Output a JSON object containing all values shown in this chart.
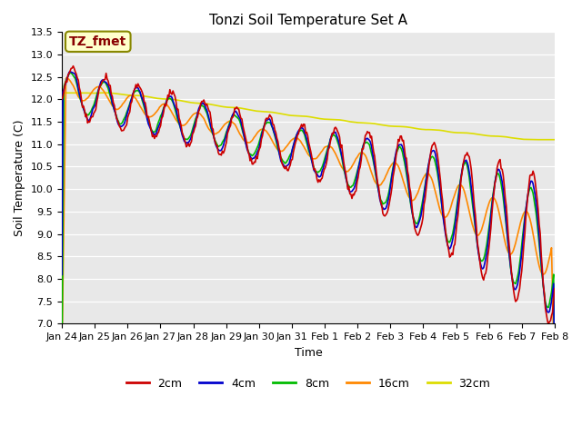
{
  "title": "Tonzi Soil Temperature Set A",
  "xlabel": "Time",
  "ylabel": "Soil Temperature (C)",
  "ylim": [
    7.0,
    13.5
  ],
  "yticks": [
    7.0,
    7.5,
    8.0,
    8.5,
    9.0,
    9.5,
    10.0,
    10.5,
    11.0,
    11.5,
    12.0,
    12.5,
    13.0,
    13.5
  ],
  "xtick_labels": [
    "Jan 24",
    "Jan 25",
    "Jan 26",
    "Jan 27",
    "Jan 28",
    "Jan 29",
    "Jan 30",
    "Jan 31",
    "Feb 1",
    "Feb 2",
    "Feb 3",
    "Feb 4",
    "Feb 5",
    "Feb 6",
    "Feb 7",
    "Feb 8"
  ],
  "color_2cm": "#cc0000",
  "color_4cm": "#0000cc",
  "color_8cm": "#00bb00",
  "color_16cm": "#ff8800",
  "color_32cm": "#dddd00",
  "annotation_text": "TZ_fmet",
  "annotation_fg": "#880000",
  "annotation_bg": "#ffffcc",
  "annotation_border": "#888800",
  "plot_bg": "#e8e8e8",
  "linewidth": 1.2,
  "title_fontsize": 11,
  "axis_label_fontsize": 9,
  "tick_fontsize": 8,
  "legend_fontsize": 9
}
